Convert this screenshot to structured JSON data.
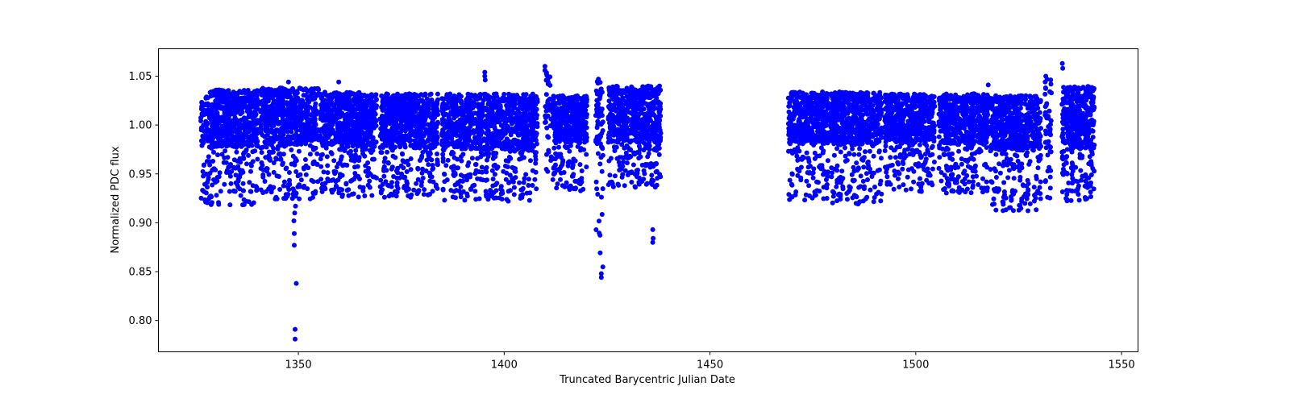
{
  "chart_data": {
    "type": "scatter",
    "title": "",
    "xlabel": "Truncated Barycentric Julian Date",
    "ylabel": "Normalized PDC flux",
    "xlim": [
      1316,
      1554
    ],
    "ylim": [
      0.768,
      1.078
    ],
    "x_ticks": [
      1350,
      1400,
      1450,
      1500,
      1550
    ],
    "x_tick_labels": [
      "1350",
      "1400",
      "1450",
      "1500",
      "1550"
    ],
    "y_ticks": [
      0.8,
      0.85,
      0.9,
      0.95,
      1.0,
      1.05
    ],
    "y_tick_labels": [
      "0.80",
      "0.85",
      "0.90",
      "0.95",
      "1.00",
      "1.05"
    ],
    "grid": false,
    "legend": null,
    "marker_color": "#0000ff",
    "marker_size": 3,
    "description": "TESS light curve; dense scatter of flux values. Each segment: dense core between core_lo and core_hi, sparse tail down to tail_lo.",
    "segments": [
      {
        "x_start": 1326.3,
        "x_end": 1340.2,
        "core_lo": 0.978,
        "core_hi": 1.036,
        "tail_lo": 0.918,
        "n": 700
      },
      {
        "x_start": 1340.8,
        "x_end": 1354.9,
        "core_lo": 0.98,
        "core_hi": 1.038,
        "tail_lo": 0.924,
        "n": 700
      },
      {
        "x_start": 1355.3,
        "x_end": 1369.0,
        "core_lo": 0.978,
        "core_hi": 1.034,
        "tail_lo": 0.926,
        "n": 700
      },
      {
        "x_start": 1369.8,
        "x_end": 1383.9,
        "core_lo": 0.976,
        "core_hi": 1.032,
        "tail_lo": 0.926,
        "n": 700
      },
      {
        "x_start": 1384.8,
        "x_end": 1408.1,
        "core_lo": 0.975,
        "core_hi": 1.032,
        "tail_lo": 0.922,
        "n": 1100
      },
      {
        "x_start": 1409.9,
        "x_end": 1411.5,
        "core_lo": 0.985,
        "core_hi": 1.055,
        "tail_lo": 0.945,
        "n": 40
      },
      {
        "x_start": 1411.8,
        "x_end": 1420.1,
        "core_lo": 0.982,
        "core_hi": 1.03,
        "tail_lo": 0.932,
        "n": 420
      },
      {
        "x_start": 1422.2,
        "x_end": 1424.0,
        "core_lo": 0.96,
        "core_hi": 1.045,
        "tail_lo": 0.845,
        "n": 70
      },
      {
        "x_start": 1425.3,
        "x_end": 1438.1,
        "core_lo": 0.982,
        "core_hi": 1.04,
        "tail_lo": 0.936,
        "n": 650
      },
      {
        "x_start": 1469.0,
        "x_end": 1478.8,
        "core_lo": 0.98,
        "core_hi": 1.034,
        "tail_lo": 0.922,
        "n": 480
      },
      {
        "x_start": 1479.2,
        "x_end": 1491.7,
        "core_lo": 0.98,
        "core_hi": 1.034,
        "tail_lo": 0.918,
        "n": 620
      },
      {
        "x_start": 1492.5,
        "x_end": 1504.6,
        "core_lo": 0.982,
        "core_hi": 1.032,
        "tail_lo": 0.932,
        "n": 600
      },
      {
        "x_start": 1505.6,
        "x_end": 1517.7,
        "core_lo": 0.98,
        "core_hi": 1.032,
        "tail_lo": 0.93,
        "n": 600
      },
      {
        "x_start": 1518.1,
        "x_end": 1530.4,
        "core_lo": 0.974,
        "core_hi": 1.03,
        "tail_lo": 0.912,
        "n": 620
      },
      {
        "x_start": 1531.4,
        "x_end": 1533.0,
        "core_lo": 0.96,
        "core_hi": 1.048,
        "tail_lo": 0.922,
        "n": 50
      },
      {
        "x_start": 1535.5,
        "x_end": 1543.4,
        "core_lo": 0.975,
        "core_hi": 1.04,
        "tail_lo": 0.922,
        "n": 450
      }
    ],
    "notable_points": [
      {
        "x": 1349.2,
        "y": 0.781
      },
      {
        "x": 1349.2,
        "y": 0.791
      },
      {
        "x": 1349.5,
        "y": 0.838
      },
      {
        "x": 1349.0,
        "y": 0.877
      },
      {
        "x": 1349.0,
        "y": 0.889
      },
      {
        "x": 1348.9,
        "y": 0.902
      },
      {
        "x": 1349.1,
        "y": 0.91
      },
      {
        "x": 1349.3,
        "y": 0.917
      },
      {
        "x": 1347.6,
        "y": 1.044
      },
      {
        "x": 1359.8,
        "y": 1.044
      },
      {
        "x": 1395.3,
        "y": 1.054
      },
      {
        "x": 1395.3,
        "y": 1.05
      },
      {
        "x": 1395.4,
        "y": 1.046
      },
      {
        "x": 1409.9,
        "y": 1.06
      },
      {
        "x": 1409.9,
        "y": 1.056
      },
      {
        "x": 1422.9,
        "y": 1.047
      },
      {
        "x": 1423.6,
        "y": 0.848
      },
      {
        "x": 1423.6,
        "y": 0.844
      },
      {
        "x": 1436.1,
        "y": 0.893
      },
      {
        "x": 1436.1,
        "y": 0.88
      },
      {
        "x": 1436.2,
        "y": 0.884
      },
      {
        "x": 1517.6,
        "y": 1.041
      },
      {
        "x": 1531.6,
        "y": 1.05
      },
      {
        "x": 1535.6,
        "y": 1.063
      },
      {
        "x": 1535.7,
        "y": 1.058
      }
    ]
  }
}
